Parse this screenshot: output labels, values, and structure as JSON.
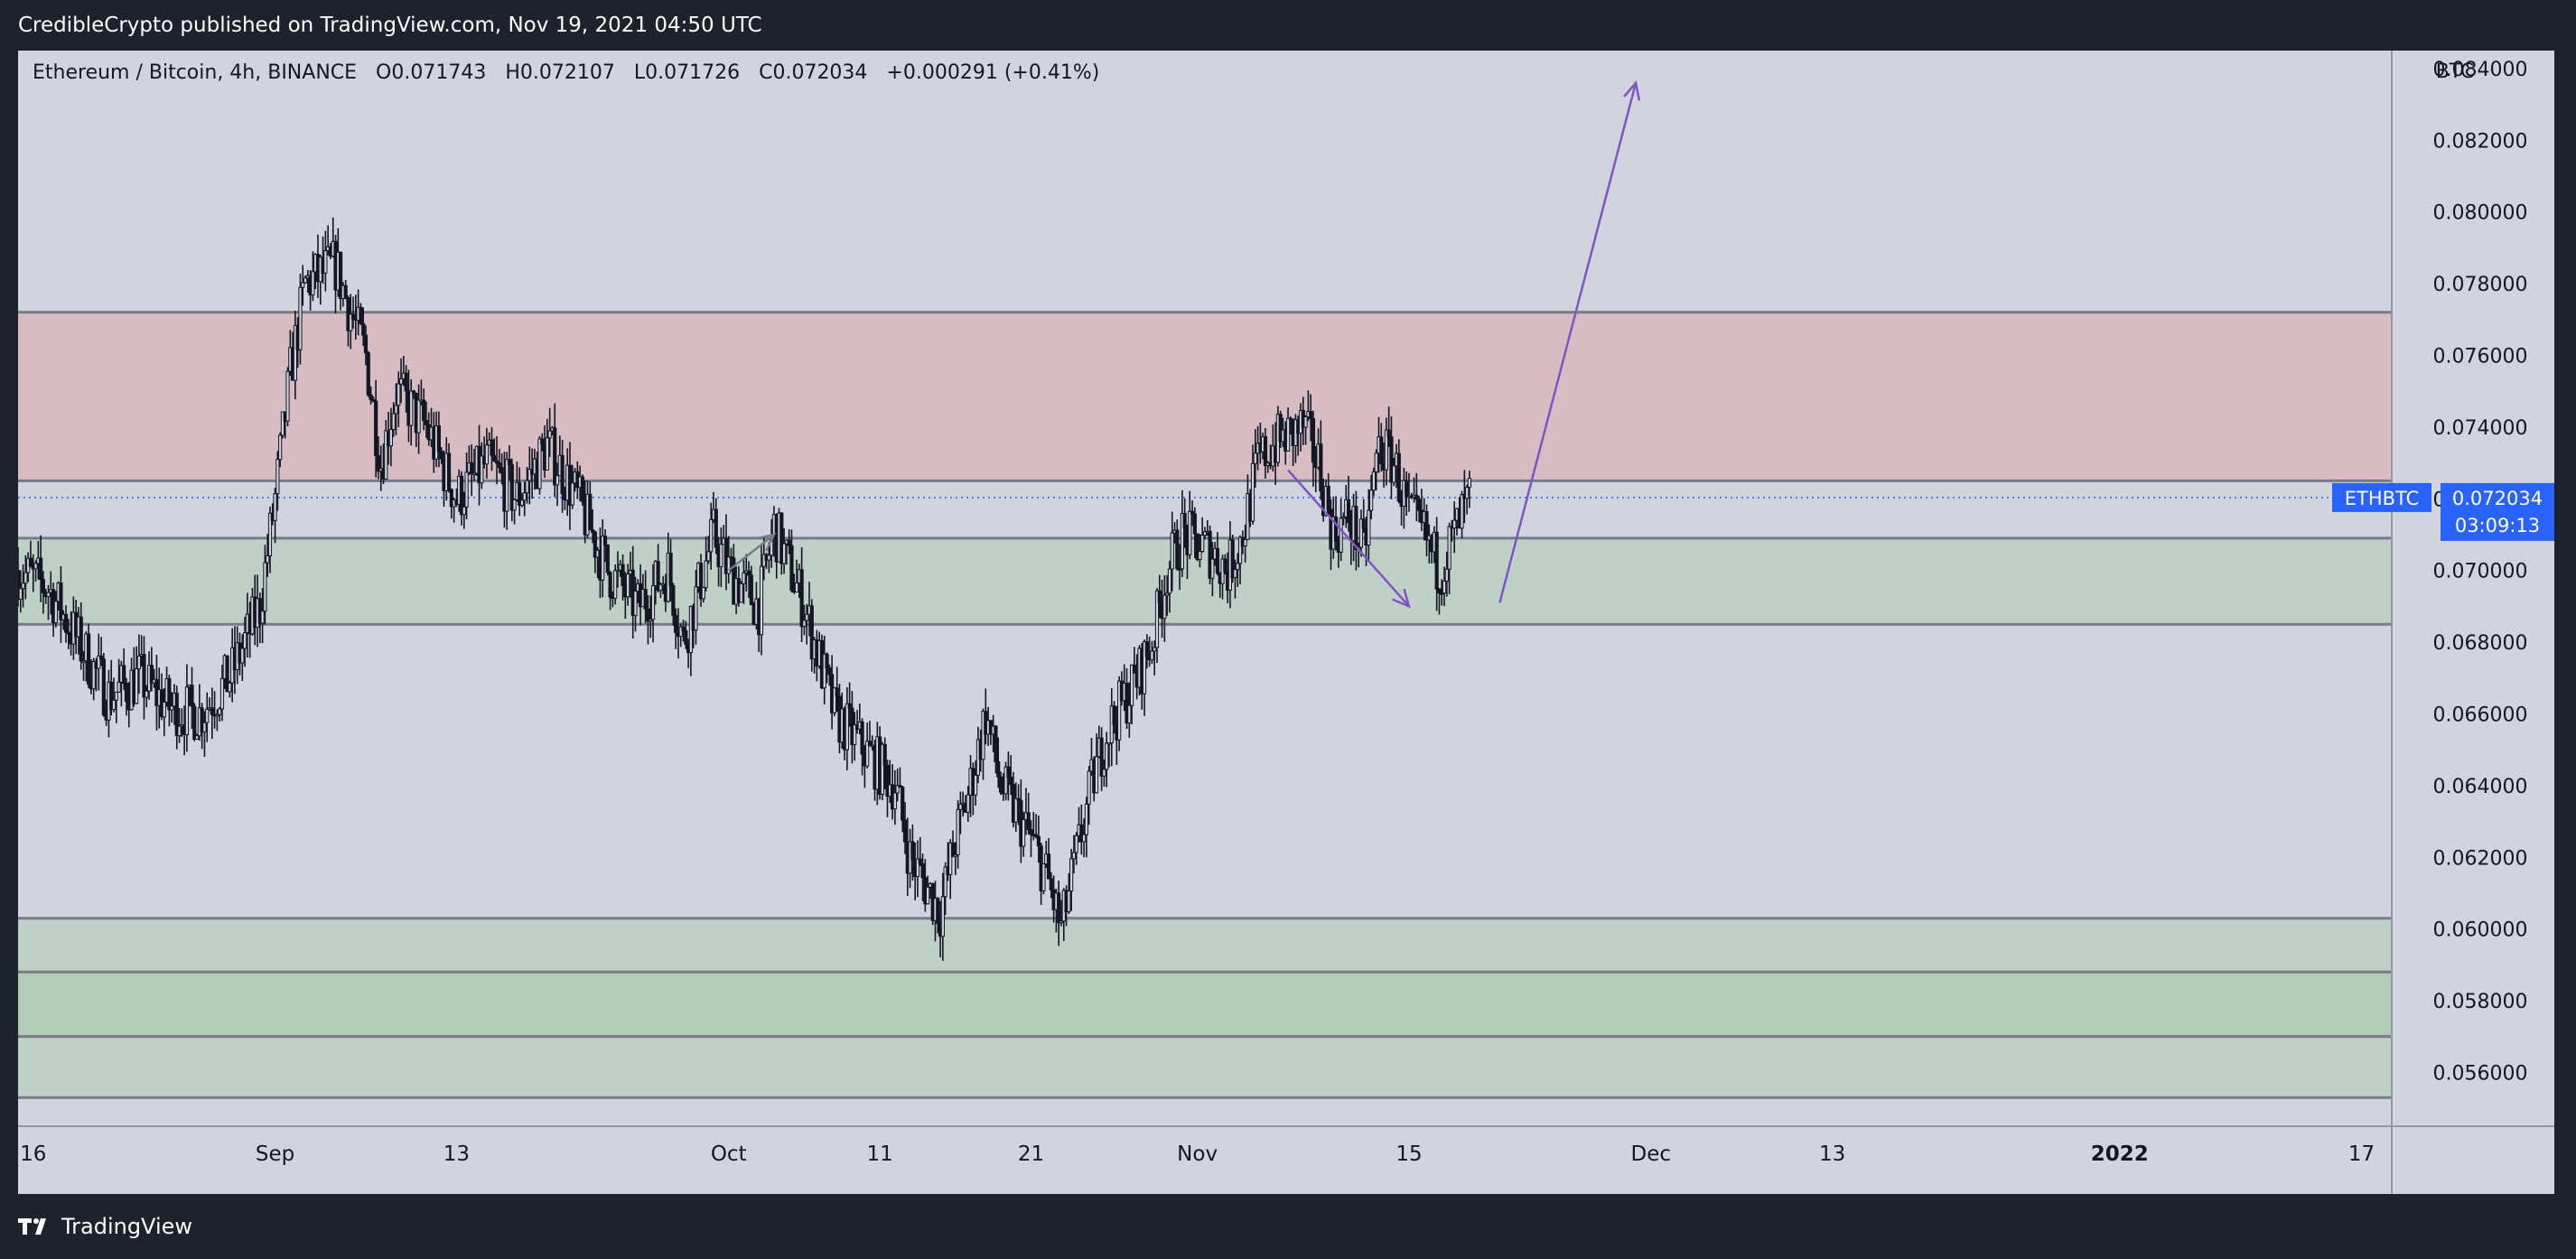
{
  "header": {
    "published_by": "CredibleCrypto published on TradingView.com, Nov 19, 2021 04:50 UTC"
  },
  "legend": {
    "symbol": "Ethereum / Bitcoin, 4h, BINANCE",
    "open_label": "O",
    "open": "0.071743",
    "high_label": "H",
    "high": "0.072107",
    "low_label": "L",
    "low": "0.071726",
    "close_label": "C",
    "close": "0.072034",
    "change": "+0.000291 (+0.41%)"
  },
  "price_tag": {
    "ticker": "ETHBTC",
    "price": "0.072034",
    "countdown": "03:09:13"
  },
  "footer": {
    "brand": "TradingView"
  },
  "colors": {
    "background": "#d1d4dc",
    "resistance_zone": "#d8bcc4",
    "support_zone": "#bfd0c8",
    "support_zone_strong": "#b0ccb8",
    "accent_blue": "#2962ff",
    "arrow_purple": "#7e57c2",
    "candle": "#131722"
  },
  "chart_data": {
    "type": "candlestick",
    "symbol": "Ethereum / Bitcoin, 4h, BINANCE",
    "y_unit": "BTC",
    "ylim": [
      0.0545,
      0.0845
    ],
    "y_ticks": [
      0.084,
      0.082,
      0.08,
      0.078,
      0.076,
      0.074,
      0.072,
      0.07,
      0.068,
      0.066,
      0.064,
      0.062,
      0.06,
      0.058,
      0.056
    ],
    "y_tick_labels": [
      "0.084000",
      "0.082000",
      "0.080000",
      "0.078000",
      "0.076000",
      "0.074000",
      "0.072000",
      "0.070000",
      "0.068000",
      "0.066000",
      "0.064000",
      "0.062000",
      "0.060000",
      "0.058000",
      "0.056000"
    ],
    "x_range_days": [
      "2021-08-15",
      "2022-01-19"
    ],
    "x_ticks": [
      {
        "date": "2021-08-16",
        "label": "16",
        "bold": false
      },
      {
        "date": "2021-09-01",
        "label": "Sep",
        "bold": false
      },
      {
        "date": "2021-09-13",
        "label": "13",
        "bold": false
      },
      {
        "date": "2021-10-01",
        "label": "Oct",
        "bold": false
      },
      {
        "date": "2021-10-11",
        "label": "11",
        "bold": false
      },
      {
        "date": "2021-10-21",
        "label": "21",
        "bold": false
      },
      {
        "date": "2021-11-01",
        "label": "Nov",
        "bold": false
      },
      {
        "date": "2021-11-15",
        "label": "15",
        "bold": false
      },
      {
        "date": "2021-12-01",
        "label": "Dec",
        "bold": false
      },
      {
        "date": "2021-12-13",
        "label": "13",
        "bold": false
      },
      {
        "date": "2022-01-01",
        "label": "2022",
        "bold": true
      },
      {
        "date": "2022-01-17",
        "label": "17",
        "bold": false
      }
    ],
    "price_path": [
      [
        "2021-08-15",
        0.07
      ],
      [
        "2021-08-17",
        0.0695
      ],
      [
        "2021-08-19",
        0.068
      ],
      [
        "2021-08-21",
        0.0665
      ],
      [
        "2021-08-23",
        0.067
      ],
      [
        "2021-08-25",
        0.0662
      ],
      [
        "2021-08-27",
        0.066
      ],
      [
        "2021-08-29",
        0.067
      ],
      [
        "2021-08-31",
        0.069
      ],
      [
        "2021-09-01",
        0.072
      ],
      [
        "2021-09-02",
        0.0755
      ],
      [
        "2021-09-03",
        0.078
      ],
      [
        "2021-09-05",
        0.0785
      ],
      [
        "2021-09-06",
        0.0772
      ],
      [
        "2021-09-07",
        0.076
      ],
      [
        "2021-09-08",
        0.073
      ],
      [
        "2021-09-09",
        0.075
      ],
      [
        "2021-09-11",
        0.074
      ],
      [
        "2021-09-13",
        0.072
      ],
      [
        "2021-09-15",
        0.073
      ],
      [
        "2021-09-17",
        0.072
      ],
      [
        "2021-09-19",
        0.0735
      ],
      [
        "2021-09-21",
        0.072
      ],
      [
        "2021-09-23",
        0.07
      ],
      [
        "2021-09-25",
        0.069
      ],
      [
        "2021-09-27",
        0.07
      ],
      [
        "2021-09-28",
        0.068
      ],
      [
        "2021-09-30",
        0.071
      ],
      [
        "2021-10-01",
        0.07
      ],
      [
        "2021-10-03",
        0.069
      ],
      [
        "2021-10-04",
        0.0712
      ],
      [
        "2021-10-06",
        0.069
      ],
      [
        "2021-10-08",
        0.066
      ],
      [
        "2021-10-10",
        0.065
      ],
      [
        "2021-10-12",
        0.064
      ],
      [
        "2021-10-13",
        0.062
      ],
      [
        "2021-10-15",
        0.0605
      ],
      [
        "2021-10-16",
        0.0625
      ],
      [
        "2021-10-17",
        0.064
      ],
      [
        "2021-10-18",
        0.066
      ],
      [
        "2021-10-19",
        0.064
      ],
      [
        "2021-10-21",
        0.0625
      ],
      [
        "2021-10-22",
        0.0615
      ],
      [
        "2021-10-23",
        0.06
      ],
      [
        "2021-10-24",
        0.062
      ],
      [
        "2021-10-25",
        0.064
      ],
      [
        "2021-10-26",
        0.0655
      ],
      [
        "2021-10-28",
        0.067
      ],
      [
        "2021-10-29",
        0.068
      ],
      [
        "2021-10-30",
        0.07
      ],
      [
        "2021-10-31",
        0.071
      ],
      [
        "2021-11-02",
        0.0705
      ],
      [
        "2021-11-03",
        0.07
      ],
      [
        "2021-11-04",
        0.071
      ],
      [
        "2021-11-05",
        0.073
      ],
      [
        "2021-11-06",
        0.0735
      ],
      [
        "2021-11-08",
        0.074
      ],
      [
        "2021-11-09",
        0.073
      ],
      [
        "2021-11-10",
        0.071
      ],
      [
        "2021-11-11",
        0.0715
      ],
      [
        "2021-11-12",
        0.0705
      ],
      [
        "2021-11-13",
        0.0735
      ],
      [
        "2021-11-14",
        0.073
      ],
      [
        "2021-11-15",
        0.0715
      ],
      [
        "2021-11-16",
        0.071
      ],
      [
        "2021-11-17",
        0.07
      ],
      [
        "2021-11-18",
        0.071
      ],
      [
        "2021-11-19",
        0.072
      ]
    ],
    "zones": [
      {
        "name": "resistance",
        "from": 0.0725,
        "to": 0.0772,
        "color": "#d8bcc4"
      },
      {
        "name": "support",
        "from": 0.0685,
        "to": 0.0709,
        "color": "#bfd0c8"
      },
      {
        "name": "support-low-1",
        "from": 0.0588,
        "to": 0.0603,
        "color": "#bfd0c8"
      },
      {
        "name": "support-low-2",
        "from": 0.057,
        "to": 0.0588,
        "color": "#b0ccb8"
      },
      {
        "name": "support-low-3",
        "from": 0.0553,
        "to": 0.057,
        "color": "#bfd0c8"
      }
    ],
    "current_price": 0.072034,
    "annotations": [
      {
        "type": "arrow",
        "from": [
          "2021-11-07",
          0.0728
        ],
        "to": [
          "2021-11-15",
          0.069
        ],
        "color": "#7e57c2"
      },
      {
        "type": "arrow",
        "from": [
          "2021-11-21",
          0.0691
        ],
        "to": [
          "2021-11-30",
          0.0836
        ],
        "color": "#7e57c2"
      },
      {
        "type": "arrow",
        "from": [
          "2021-10-01",
          0.07
        ],
        "to": [
          "2021-10-04",
          0.071
        ],
        "color": "#787b86"
      }
    ]
  }
}
